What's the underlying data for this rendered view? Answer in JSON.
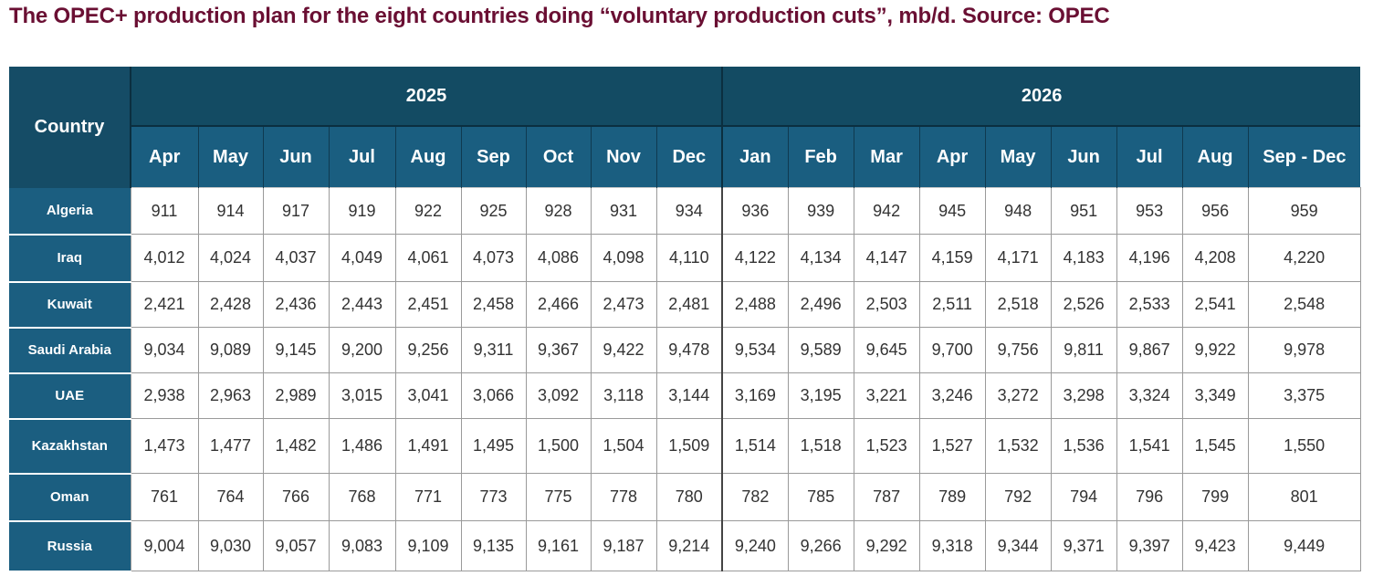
{
  "title": "The OPEC+ production plan for the eight countries doing “voluntary production cuts”, mb/d. Source: OPEC",
  "table": {
    "corner_label": "Country",
    "years": [
      "2025",
      "2026"
    ],
    "months": [
      "Apr",
      "May",
      "Jun",
      "Jul",
      "Aug",
      "Sep",
      "Oct",
      "Nov",
      "Dec",
      "Jan",
      "Feb",
      "Mar",
      "Apr",
      "May",
      "Jun",
      "Jul",
      "Aug",
      "Sep - Dec"
    ],
    "rows": [
      {
        "country": "Algeria",
        "values": [
          "911",
          "914",
          "917",
          "919",
          "922",
          "925",
          "928",
          "931",
          "934",
          "936",
          "939",
          "942",
          "945",
          "948",
          "951",
          "953",
          "956",
          "959"
        ]
      },
      {
        "country": "Iraq",
        "values": [
          "4,012",
          "4,024",
          "4,037",
          "4,049",
          "4,061",
          "4,073",
          "4,086",
          "4,098",
          "4,110",
          "4,122",
          "4,134",
          "4,147",
          "4,159",
          "4,171",
          "4,183",
          "4,196",
          "4,208",
          "4,220"
        ]
      },
      {
        "country": "Kuwait",
        "values": [
          "2,421",
          "2,428",
          "2,436",
          "2,443",
          "2,451",
          "2,458",
          "2,466",
          "2,473",
          "2,481",
          "2,488",
          "2,496",
          "2,503",
          "2,511",
          "2,518",
          "2,526",
          "2,533",
          "2,541",
          "2,548"
        ]
      },
      {
        "country": "Saudi Arabia",
        "values": [
          "9,034",
          "9,089",
          "9,145",
          "9,200",
          "9,256",
          "9,311",
          "9,367",
          "9,422",
          "9,478",
          "9,534",
          "9,589",
          "9,645",
          "9,700",
          "9,756",
          "9,811",
          "9,867",
          "9,922",
          "9,978"
        ]
      },
      {
        "country": "UAE",
        "values": [
          "2,938",
          "2,963",
          "2,989",
          "3,015",
          "3,041",
          "3,066",
          "3,092",
          "3,118",
          "3,144",
          "3,169",
          "3,195",
          "3,221",
          "3,246",
          "3,272",
          "3,298",
          "3,324",
          "3,349",
          "3,375"
        ]
      },
      {
        "country": "Kazakhstan",
        "values": [
          "1,473",
          "1,477",
          "1,482",
          "1,486",
          "1,491",
          "1,495",
          "1,500",
          "1,504",
          "1,509",
          "1,514",
          "1,518",
          "1,523",
          "1,527",
          "1,532",
          "1,536",
          "1,541",
          "1,545",
          "1,550"
        ]
      },
      {
        "country": "Oman",
        "values": [
          "761",
          "764",
          "766",
          "768",
          "771",
          "773",
          "775",
          "778",
          "780",
          "782",
          "785",
          "787",
          "789",
          "792",
          "794",
          "796",
          "799",
          "801"
        ]
      },
      {
        "country": "Russia",
        "values": [
          "9,004",
          "9,030",
          "9,057",
          "9,083",
          "9,109",
          "9,135",
          "9,161",
          "9,187",
          "9,214",
          "9,240",
          "9,266",
          "9,292",
          "9,318",
          "9,344",
          "9,371",
          "9,397",
          "9,423",
          "9,449"
        ]
      }
    ]
  }
}
